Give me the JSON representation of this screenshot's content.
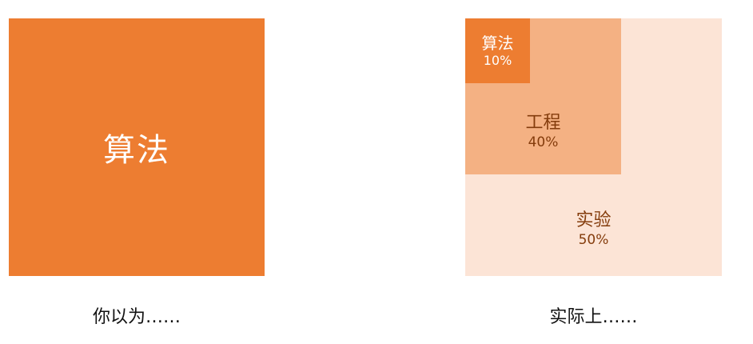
{
  "colors": {
    "dark_orange": "#ED7D31",
    "mid_orange": "#F4B183",
    "light_orange": "#FCE4D6",
    "dark_text": "#843C0C"
  },
  "left": {
    "label": "算法",
    "caption": "你以为……"
  },
  "right": {
    "caption": "实际上……",
    "blocks": [
      {
        "label": "实验",
        "percent": "50%"
      },
      {
        "label": "工程",
        "percent": "40%"
      },
      {
        "label": "算法",
        "percent": "10%"
      }
    ]
  }
}
